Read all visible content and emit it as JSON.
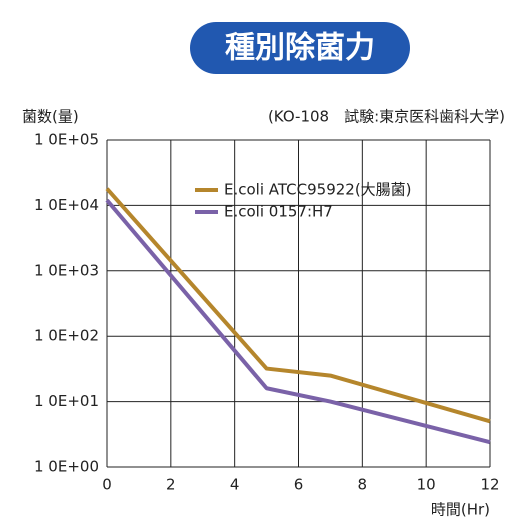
{
  "chart_data": {
    "type": "line",
    "title": "種別除菌力",
    "y_label": "菌数(量)",
    "annotation": "(KO-108　試験:東京医科歯科大学)",
    "x_label": "時間(Hr)",
    "log_y": true,
    "grid": true,
    "xlim": [
      0,
      12
    ],
    "xticks": [
      0,
      2,
      4,
      6,
      8,
      10,
      12
    ],
    "ylim": [
      1,
      100000
    ],
    "yticks": [
      {
        "value": 1,
        "label": "1 0E+00"
      },
      {
        "value": 10,
        "label": "1 0E+01"
      },
      {
        "value": 100,
        "label": "1 0E+02"
      },
      {
        "value": 1000,
        "label": "1 0E+03"
      },
      {
        "value": 10000,
        "label": "1 0E+04"
      },
      {
        "value": 100000,
        "label": "1 0E+05"
      }
    ],
    "x": [
      0,
      5,
      7,
      12
    ],
    "series": [
      {
        "name": "E.coli ATCC95922(大腸菌)",
        "color": "#b5862c",
        "values": [
          18000,
          32,
          25,
          5
        ]
      },
      {
        "name": "E.coli 0157:H7",
        "color": "#7a62a8",
        "values": [
          12000,
          16,
          10,
          2.4
        ]
      }
    ]
  }
}
